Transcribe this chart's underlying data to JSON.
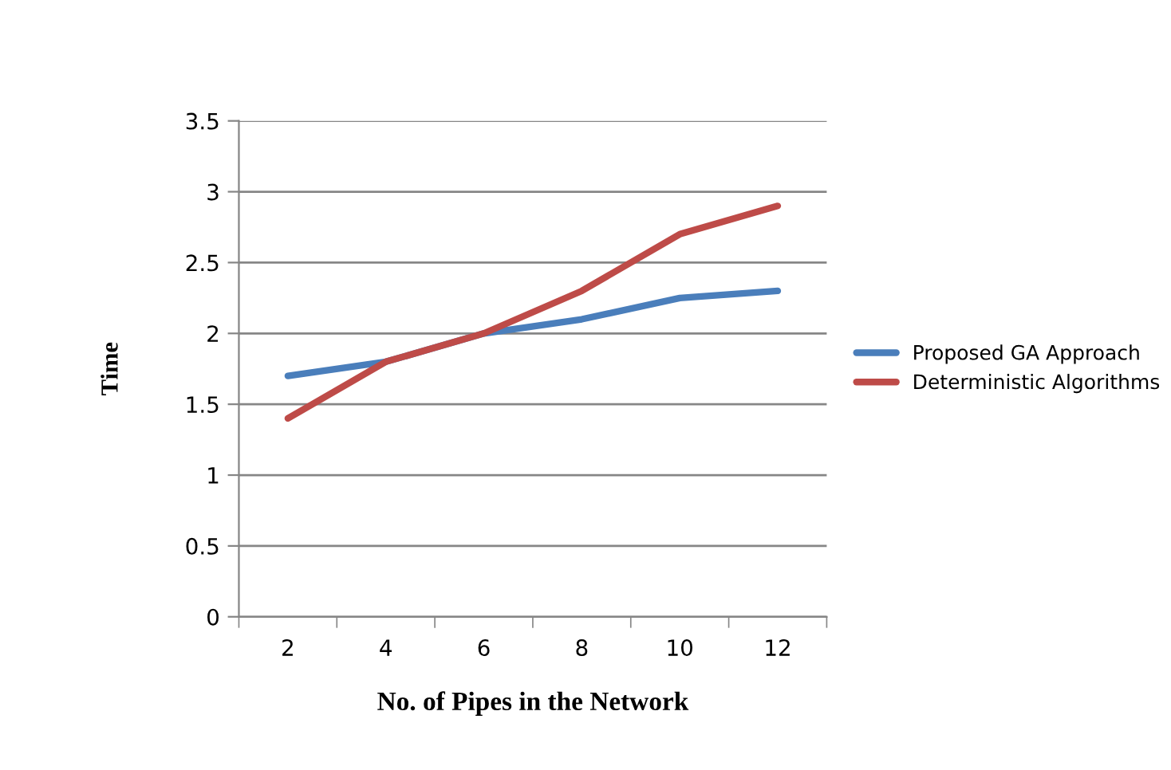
{
  "chart_data": {
    "type": "line",
    "xlabel": "No. of Pipes in the Network",
    "ylabel": "Time",
    "categories": [
      "2",
      "4",
      "6",
      "8",
      "10",
      "12"
    ],
    "series": [
      {
        "name": "Proposed GA Approach",
        "color": "#4a7ebb",
        "values": [
          1.7,
          1.8,
          2.0,
          2.1,
          2.25,
          2.3
        ]
      },
      {
        "name": "Deterministic Algorithms",
        "color": "#be4b48",
        "values": [
          1.4,
          1.8,
          2.0,
          2.3,
          2.7,
          2.9
        ]
      }
    ],
    "ylim": [
      0,
      3.5
    ],
    "yticks": [
      0,
      0.5,
      1,
      1.5,
      2,
      2.5,
      3,
      3.5
    ],
    "grid": "y",
    "legend": "right"
  }
}
